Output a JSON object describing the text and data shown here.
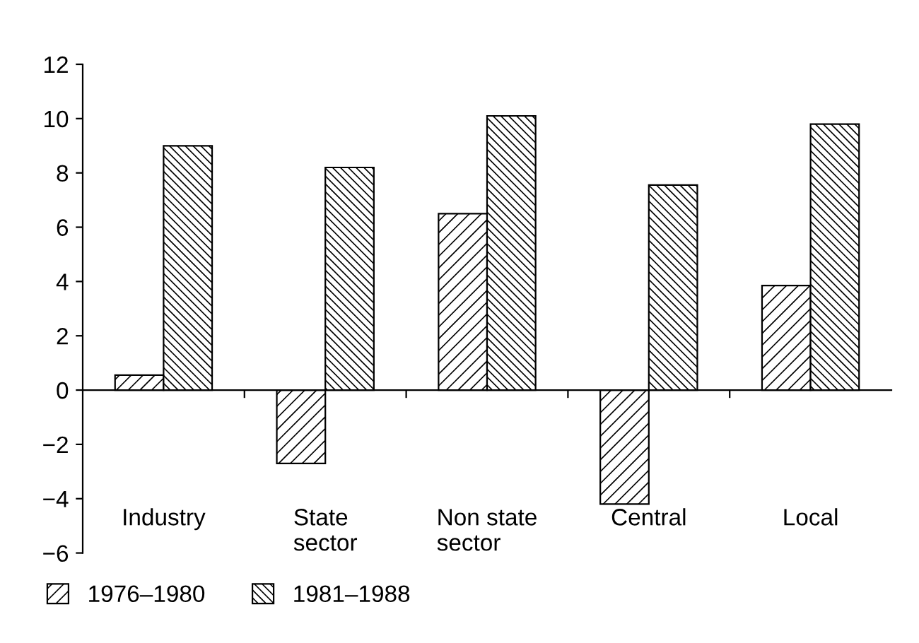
{
  "chart_data": {
    "type": "bar",
    "categories": [
      "Industry",
      "State\nsector",
      "Non state\nsector",
      "Central",
      "Local"
    ],
    "series": [
      {
        "name": "1976–1980",
        "color": "#000000",
        "values": [
          0.55,
          -2.7,
          6.5,
          -4.2,
          3.85
        ]
      },
      {
        "name": "1981–1988",
        "color": "#000000",
        "values": [
          9.0,
          8.2,
          10.1,
          7.55,
          9.8
        ]
      }
    ],
    "ylim": [
      -6,
      12
    ],
    "yticks": [
      {
        "value": -6,
        "label": "−6"
      },
      {
        "value": -4,
        "label": "−4"
      },
      {
        "value": -2,
        "label": "−2"
      },
      0,
      2,
      4,
      6,
      8,
      10,
      12
    ],
    "legend": "bottom"
  }
}
